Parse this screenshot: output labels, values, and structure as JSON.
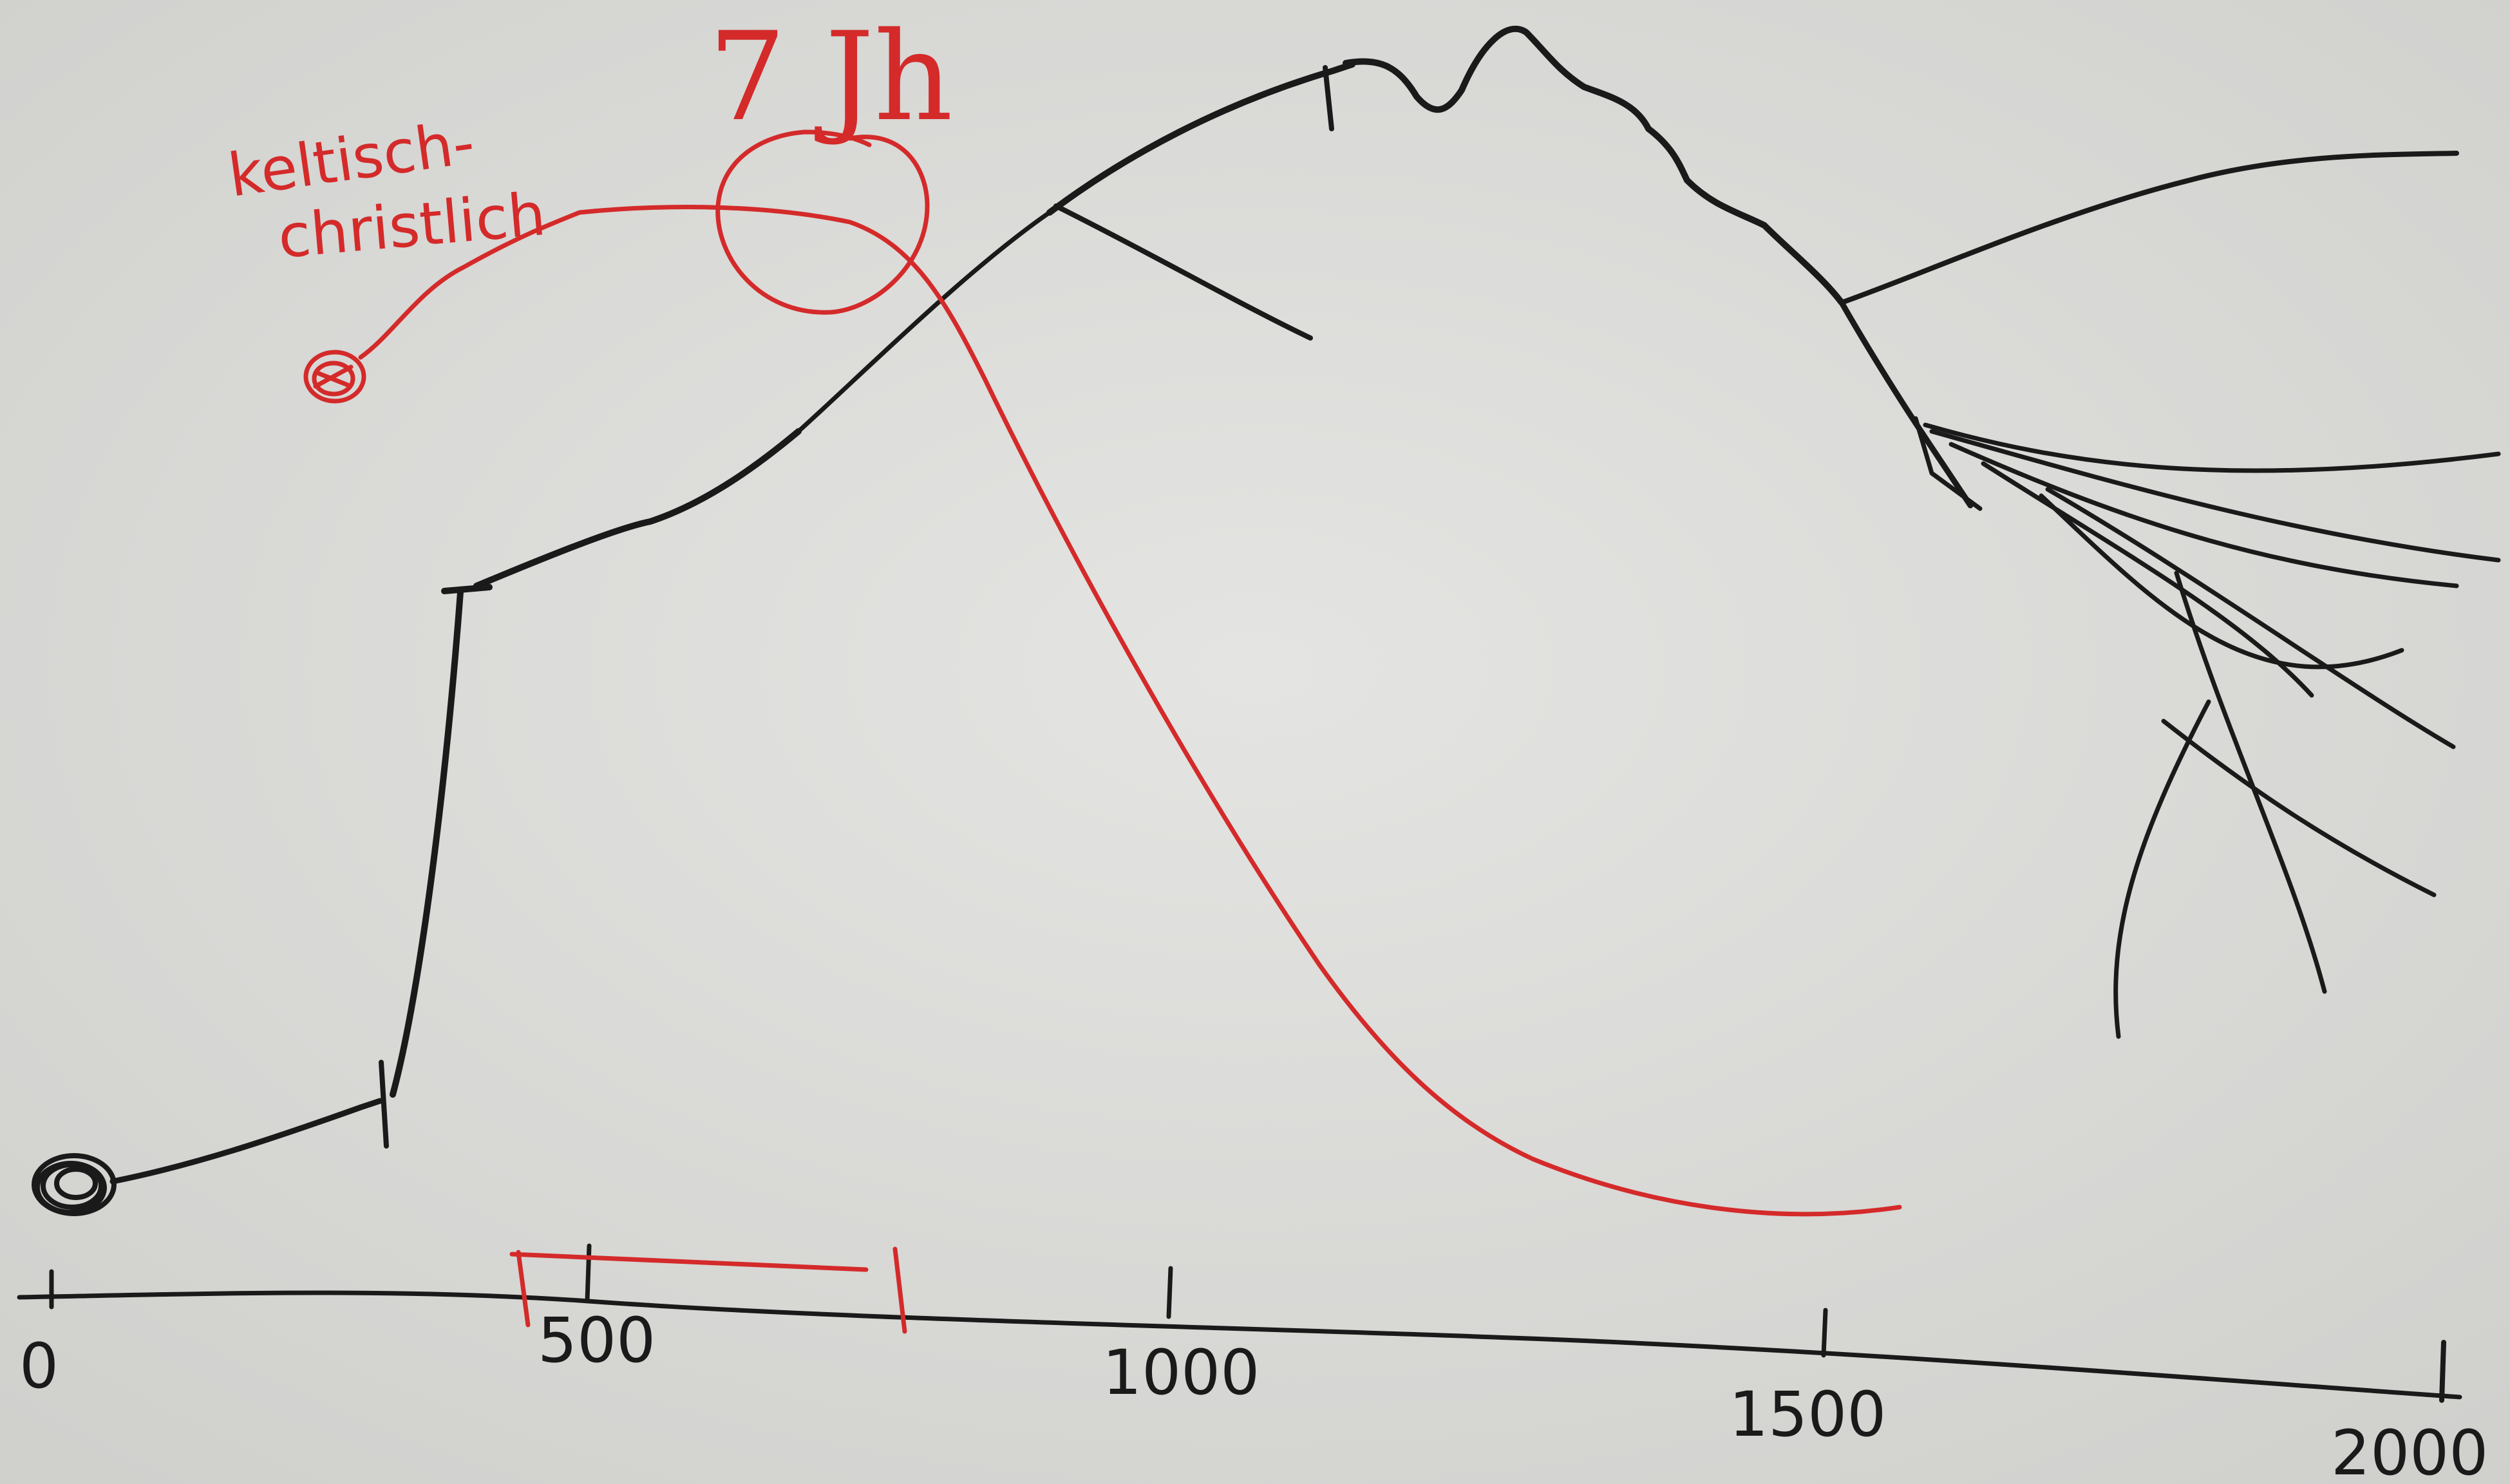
{
  "colors": {
    "paper": "#dcdcda",
    "ink_black": "#1a1a1a",
    "ink_red": "#d42a2a"
  },
  "axis": {
    "ticks": [
      "0",
      "500",
      "1000",
      "1500",
      "2000"
    ],
    "tick_values": [
      0,
      500,
      1000,
      1500,
      2000
    ]
  },
  "annotations": {
    "red_label_line1": "keltisch-",
    "red_label_line2": "christlich",
    "red_circle_label": "7 Jh"
  }
}
